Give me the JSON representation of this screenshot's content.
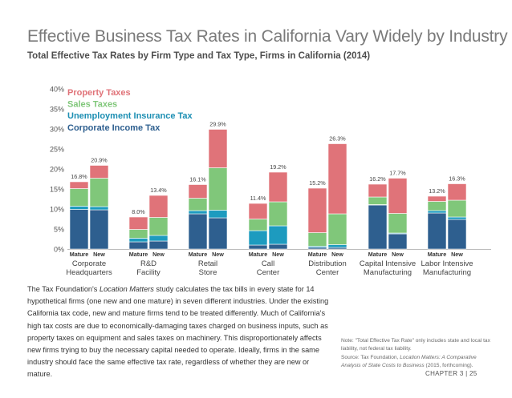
{
  "page": {
    "title": "Effective Business Tax Rates in California Vary Widely by Industry",
    "subtitle": "Total Effective Tax Rates by Firm Type and Tax Type, Firms in California (2014)"
  },
  "chart_data": {
    "type": "bar",
    "stacked": true,
    "title": "",
    "xlabel": "",
    "ylabel": "",
    "ylim": [
      0,
      40
    ],
    "yticks": [
      0,
      5,
      10,
      15,
      20,
      25,
      30,
      35,
      40
    ],
    "ytick_labels": [
      "0%",
      "5%",
      "10%",
      "15%",
      "20%",
      "25%",
      "30%",
      "35%",
      "40%"
    ],
    "grid": false,
    "legend_position": "top-left",
    "subcategories": [
      "Mature",
      "New"
    ],
    "groups": [
      {
        "label": [
          "Corporate",
          "Headquarters"
        ],
        "totals": [
          "16.8%",
          "20.9%"
        ]
      },
      {
        "label": [
          "R&D",
          "Facility"
        ],
        "totals": [
          "8.0%",
          "13.4%"
        ]
      },
      {
        "label": [
          "Retail",
          "Store"
        ],
        "totals": [
          "16.1%",
          "29.9%"
        ]
      },
      {
        "label": [
          "Call",
          "Center"
        ],
        "totals": [
          "11.4%",
          "19.2%"
        ]
      },
      {
        "label": [
          "Distribution",
          "Center"
        ],
        "totals": [
          "15.2%",
          "26.3%"
        ]
      },
      {
        "label": [
          "Capital Intensive",
          "Manufacturing"
        ],
        "totals": [
          "16.2%",
          "17.7%"
        ]
      },
      {
        "label": [
          "Labor Intensive",
          "Manufacturing"
        ],
        "totals": [
          "13.2%",
          "16.3%"
        ]
      }
    ],
    "series": [
      {
        "name": "Corporate Income Tax",
        "color": "#2e5f8f",
        "values": [
          [
            9.9,
            9.8
          ],
          [
            1.8,
            2.0
          ],
          [
            8.8,
            7.8
          ],
          [
            1.0,
            1.2
          ],
          [
            0.4,
            0.4
          ],
          [
            11.0,
            3.8
          ],
          [
            9.0,
            7.4
          ]
        ]
      },
      {
        "name": "Unemployment Insurance Tax",
        "color": "#1d9bbf",
        "values": [
          [
            0.8,
            0.8
          ],
          [
            0.9,
            1.4
          ],
          [
            0.8,
            1.9
          ],
          [
            3.6,
            4.6
          ],
          [
            0.3,
            0.7
          ],
          [
            0.1,
            0.2
          ],
          [
            0.6,
            0.6
          ]
        ]
      },
      {
        "name": "Sales Taxes",
        "color": "#80c77a",
        "values": [
          [
            4.4,
            7.1
          ],
          [
            2.2,
            4.5
          ],
          [
            3.1,
            10.6
          ],
          [
            2.9,
            6.0
          ],
          [
            3.4,
            7.7
          ],
          [
            1.9,
            4.9
          ],
          [
            2.3,
            4.2
          ]
        ]
      },
      {
        "name": "Property Taxes",
        "color": "#e07379",
        "values": [
          [
            1.7,
            3.2
          ],
          [
            3.1,
            5.5
          ],
          [
            3.4,
            9.6
          ],
          [
            3.9,
            7.4
          ],
          [
            11.1,
            17.5
          ],
          [
            3.2,
            8.8
          ],
          [
            1.3,
            4.1
          ]
        ]
      }
    ],
    "legend_order": [
      "Property Taxes",
      "Sales Taxes",
      "Unemployment Insurance Tax",
      "Corporate Income Tax"
    ]
  },
  "body": {
    "lines": [
      [
        "The Tax Foundation's ",
        {
          "em": "Location Matters"
        },
        " study calculates the tax bills in every state for 14"
      ],
      [
        "hypothetical firms (one new and one mature) in seven different industries. Under the existing"
      ],
      [
        "California tax code, new and mature firms tend to be treated differently. Much of California's"
      ],
      [
        "high tax costs are due to economically-damaging taxes charged on business inputs, such as"
      ],
      [
        "property taxes on equipment and sales taxes on machinery. This disproportionately affects"
      ],
      [
        "new firms trying to buy the necessary capital needed to operate. Ideally, firms in the same"
      ],
      [
        "industry should face the same effective tax rate, regardless of whether they are new or"
      ],
      [
        "mature."
      ]
    ]
  },
  "notes": {
    "note": "Note: \"Total Effective Tax Rate\" only includes state and local tax liability, not federal tax liability.",
    "source_parts": [
      "Source: Tax Foundation, ",
      {
        "em": "Location Matters: A Comparative Analysis of State Costs to Business"
      },
      " (2015, forthcoming)."
    ]
  },
  "footer": {
    "text": "CHAPTER 3 | 25"
  }
}
